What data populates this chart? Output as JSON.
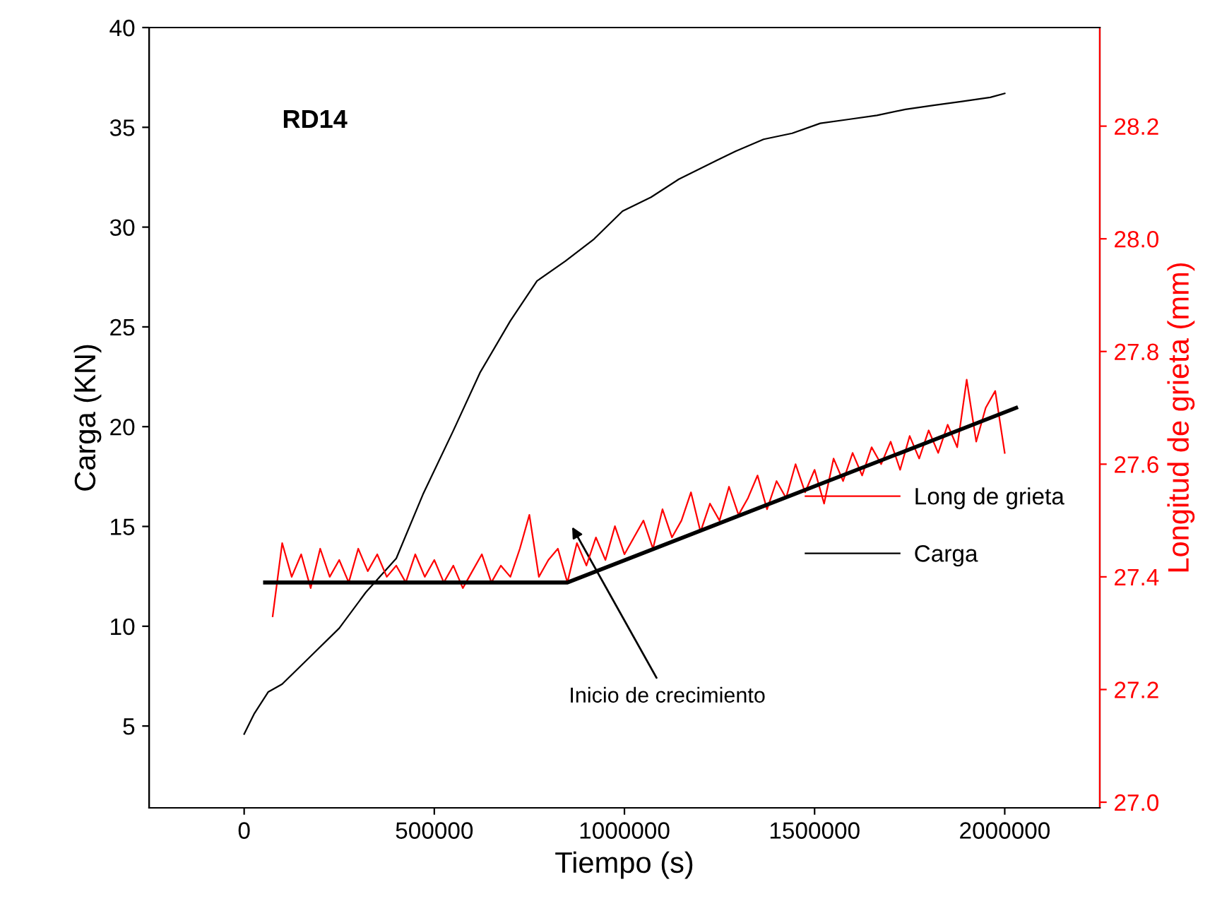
{
  "chart_data": {
    "type": "line",
    "xlabel": "Tiempo (s)",
    "ylabel": "Carga (KN)",
    "y2label": "Longitud de grieta (mm)",
    "xlim": [
      -250000,
      2250000
    ],
    "xticks": [
      0,
      500000,
      1000000,
      1500000,
      2000000
    ],
    "ylim": [
      0.9,
      40
    ],
    "yticks": [
      5,
      10,
      15,
      20,
      25,
      30,
      35,
      40
    ],
    "y2lim": [
      26.99,
      28.375
    ],
    "y2ticks": [
      {
        "value": 27.0,
        "label": "27.0"
      },
      {
        "value": 27.2,
        "label": "27.2"
      },
      {
        "value": 27.4,
        "label": "27.4"
      },
      {
        "value": 27.6,
        "label": "27.6"
      },
      {
        "value": 27.8,
        "label": "27.8"
      },
      {
        "value": 28.0,
        "label": "28.0"
      },
      {
        "value": 28.2,
        "label": "28.2"
      }
    ],
    "legend": "right",
    "grid": false,
    "annotations": [
      "RD14",
      "Inicio de crecimiento"
    ],
    "series": [
      {
        "name": "Long de grieta",
        "color": "#ff0000",
        "axis": "y2",
        "x": [
          75000,
          100000,
          125000,
          150000,
          175000,
          200000,
          225000,
          250000,
          275000,
          300000,
          325000,
          350000,
          375000,
          400000,
          425000,
          450000,
          475000,
          500000,
          525000,
          550000,
          575000,
          600000,
          625000,
          650000,
          675000,
          700000,
          725000,
          750000,
          775000,
          800000,
          825000,
          850000,
          875000,
          900000,
          925000,
          950000,
          975000,
          1000000,
          1025000,
          1050000,
          1075000,
          1100000,
          1125000,
          1150000,
          1175000,
          1200000,
          1225000,
          1250000,
          1275000,
          1300000,
          1325000,
          1350000,
          1375000,
          1400000,
          1425000,
          1450000,
          1475000,
          1500000,
          1525000,
          1550000,
          1575000,
          1600000,
          1625000,
          1650000,
          1675000,
          1700000,
          1725000,
          1750000,
          1775000,
          1800000,
          1825000,
          1850000,
          1875000,
          1900000,
          1925000,
          1950000,
          1975000,
          2000000
        ],
        "values": [
          27.33,
          27.46,
          27.4,
          27.44,
          27.38,
          27.45,
          27.4,
          27.43,
          27.39,
          27.45,
          27.41,
          27.44,
          27.4,
          27.42,
          27.39,
          27.44,
          27.4,
          27.43,
          27.39,
          27.42,
          27.38,
          27.41,
          27.44,
          27.39,
          27.42,
          27.4,
          27.45,
          27.51,
          27.4,
          27.43,
          27.45,
          27.39,
          27.46,
          27.42,
          27.47,
          27.43,
          27.49,
          27.44,
          27.47,
          27.5,
          27.45,
          27.52,
          27.47,
          27.5,
          27.55,
          27.48,
          27.53,
          27.5,
          27.56,
          27.51,
          27.54,
          27.58,
          27.52,
          27.57,
          27.54,
          27.6,
          27.55,
          27.59,
          27.53,
          27.61,
          27.57,
          27.62,
          27.58,
          27.63,
          27.6,
          27.64,
          27.59,
          27.65,
          27.61,
          27.66,
          27.62,
          27.67,
          27.63,
          27.75,
          27.64,
          27.7,
          27.73,
          27.62
        ]
      },
      {
        "name": "Carga",
        "color": "#000000",
        "x": [
          0,
          26000,
          63000,
          100000,
          175000,
          250000,
          320000,
          400000,
          470000,
          550000,
          620000,
          700000,
          770000,
          845000,
          920000,
          995000,
          1070000,
          1143000,
          1217000,
          1292000,
          1366000,
          1441000,
          1515000,
          1590000,
          1664000,
          1739000,
          1813000,
          1888000,
          1962000,
          2000000
        ],
        "values": [
          4.6,
          5.6,
          6.7,
          7.1,
          8.5,
          9.9,
          11.7,
          13.4,
          16.6,
          19.8,
          22.7,
          25.3,
          27.3,
          28.3,
          29.4,
          30.8,
          31.5,
          32.4,
          33.1,
          33.8,
          34.4,
          34.7,
          35.2,
          35.4,
          35.6,
          35.9,
          36.1,
          36.3,
          36.5,
          36.7
        ]
      },
      {
        "color": "#000000",
        "axis": "y2",
        "x": [
          55000,
          850000,
          2030000
        ],
        "values": [
          27.39,
          27.39,
          27.7
        ]
      }
    ]
  }
}
